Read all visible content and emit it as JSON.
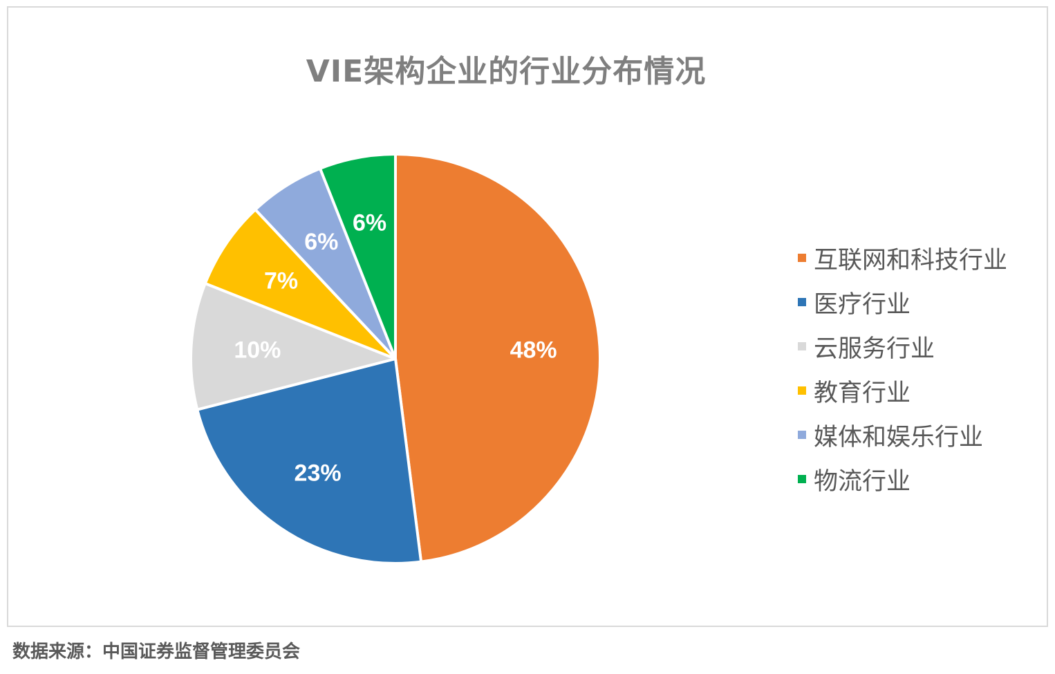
{
  "chart_data": {
    "type": "pie",
    "title": "VIE架构企业的行业分布情况",
    "categories": [
      "互联网和科技行业",
      "医疗行业",
      "云服务行业",
      "教育行业",
      "媒体和娱乐行业",
      "物流行业"
    ],
    "values": [
      48,
      23,
      10,
      7,
      6,
      6
    ],
    "data_labels": [
      "48%",
      "23%",
      "10%",
      "7%",
      "6%",
      "6%"
    ],
    "colors": [
      "#ED7D31",
      "#2E75B6",
      "#D9D9D9",
      "#FFC000",
      "#8FAADC",
      "#00B050"
    ],
    "start_angle": "12 o'clock",
    "direction": "clockwise",
    "legend_position": "right"
  },
  "source_note": "数据来源：中国证券监督管理委员会"
}
